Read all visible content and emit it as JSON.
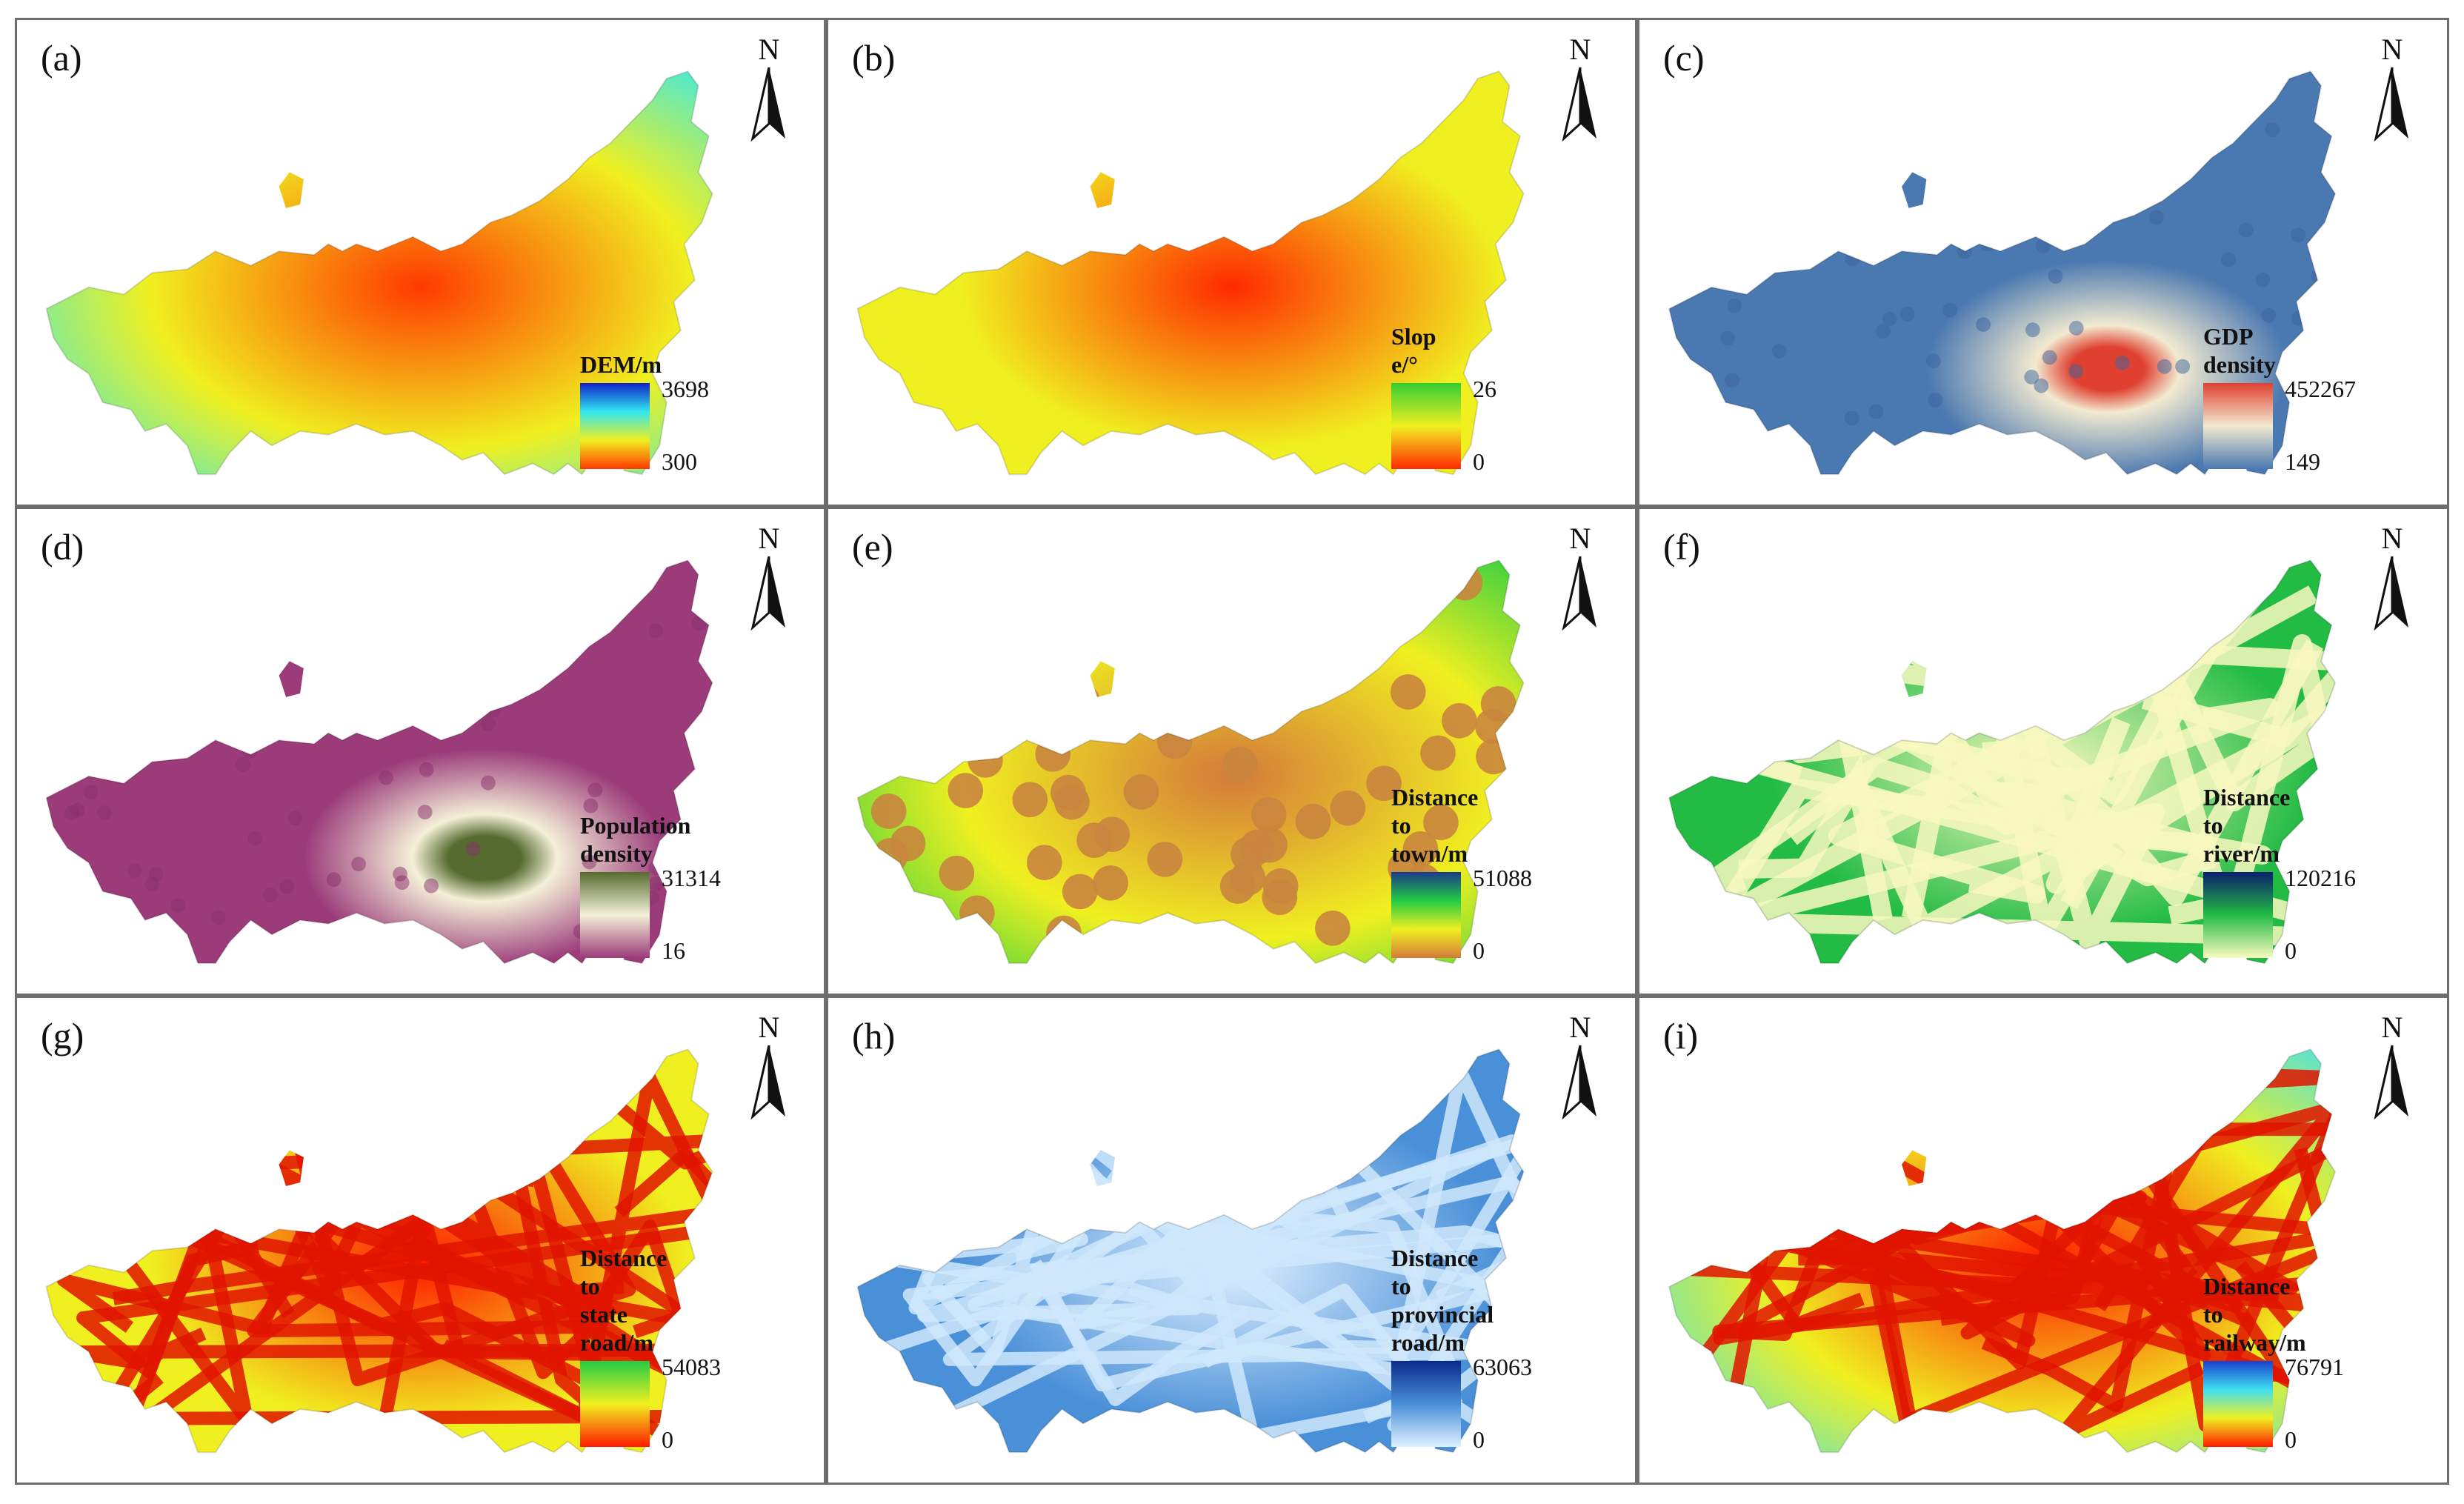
{
  "panels": [
    {
      "letter": "(a)",
      "north": "N",
      "legend_title": "DEM/m",
      "legend_max": "3698",
      "legend_min": "300",
      "colors": {
        "top": "#1020c8",
        "mid": "#30e8f0",
        "mid2": "#f0f020",
        "bottom": "#ff3a00"
      }
    },
    {
      "letter": "(b)",
      "north": "N",
      "legend_title": "Slop e/°",
      "legend_max": "26",
      "legend_min": "0",
      "colors": {
        "top": "#33cc33",
        "mid": "#f0f020",
        "bottom": "#ff2a00"
      }
    },
    {
      "letter": "(c)",
      "north": "N",
      "legend_title": "GDP density",
      "legend_max": "452267",
      "legend_min": "149",
      "colors": {
        "top": "#e04030",
        "mid": "#f2ead0",
        "bottom": "#4a78b0"
      }
    },
    {
      "letter": "(d)",
      "north": "N",
      "legend_title": "Population\ndensity",
      "legend_max": "31314",
      "legend_min": "16",
      "colors": {
        "top": "#556b2f",
        "mid": "#f4f0d8",
        "bottom": "#9b3b7a"
      }
    },
    {
      "letter": "(e)",
      "north": "N",
      "legend_title": "Distance to\ntown/m",
      "legend_max": "51088",
      "legend_min": "0",
      "colors": {
        "top": "#1a3a8a",
        "mid": "#22cc44",
        "mid2": "#f0f020",
        "bottom": "#d47a3a"
      }
    },
    {
      "letter": "(f)",
      "north": "N",
      "legend_title": "Distance to\nriver/m",
      "legend_max": "120216",
      "legend_min": "0",
      "colors": {
        "top": "#0a1e6e",
        "mid": "#22bb44",
        "bottom": "#fafac0"
      }
    },
    {
      "letter": "(g)",
      "north": "N",
      "legend_title": "Distance to\nstate road/m",
      "legend_max": "54083",
      "legend_min": "0",
      "colors": {
        "top": "#22cc44",
        "mid": "#f0f020",
        "bottom": "#ff1a00"
      }
    },
    {
      "letter": "(h)",
      "north": "N",
      "legend_title": "Distance to\nprovincial road/m",
      "legend_max": "63063",
      "legend_min": "0",
      "colors": {
        "top": "#0a2a8a",
        "mid": "#4a90d8",
        "bottom": "#dff0ff"
      }
    },
    {
      "letter": "(i)",
      "north": "N",
      "legend_title": "Distance to\nrailway/m",
      "legend_max": "76791",
      "legend_min": "0",
      "colors": {
        "top": "#1a40d0",
        "mid": "#40e0f0",
        "mid2": "#f0f020",
        "bottom": "#ff1a00"
      }
    }
  ]
}
